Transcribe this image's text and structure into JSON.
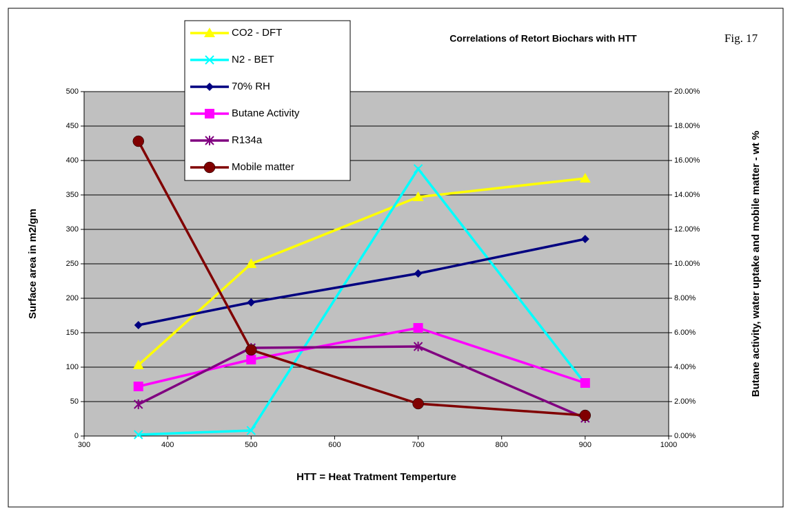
{
  "chart_data": {
    "type": "line",
    "title": "Correlations of Retort Biochars with HTT",
    "figure_label": "Fig. 17",
    "x_label": "HTT = Heat Tratment Temperture",
    "y_label": "Surface area in m2/gm",
    "y2_label": "Butane activity, water uptake and mobile matter - wt %",
    "x": [
      365,
      500,
      700,
      900
    ],
    "xlim": [
      300,
      1000
    ],
    "xticks": [
      300,
      400,
      500,
      600,
      700,
      800,
      900,
      1000
    ],
    "ylim": [
      0,
      500
    ],
    "yticks": [
      0,
      50,
      100,
      150,
      200,
      250,
      300,
      350,
      400,
      450,
      500
    ],
    "y2lim": [
      0,
      20
    ],
    "y2ticks": [
      {
        "value": 0,
        "label": "0.00%"
      },
      {
        "value": 2,
        "label": "2.00%"
      },
      {
        "value": 4,
        "label": "4.00%"
      },
      {
        "value": 6,
        "label": "6.00%"
      },
      {
        "value": 8,
        "label": "8.00%"
      },
      {
        "value": 10,
        "label": "10.00%"
      },
      {
        "value": 12,
        "label": "12.00%"
      },
      {
        "value": 14,
        "label": "14.00%"
      },
      {
        "value": 16,
        "label": "16.00%"
      },
      {
        "value": 18,
        "label": "18.00%"
      },
      {
        "value": 20,
        "label": "20.00%"
      }
    ],
    "grid": true,
    "series": [
      {
        "name": "CO2 - DFT",
        "color": "#ffff00",
        "marker": "triangle",
        "values": [
          103,
          250,
          347,
          374
        ]
      },
      {
        "name": "N2 - BET",
        "color": "#00ffff",
        "marker": "x",
        "values": [
          2,
          8,
          388,
          76
        ]
      },
      {
        "name": "70% RH",
        "color": "#000080",
        "marker": "diamond",
        "axis": "y2",
        "values": [
          6.44,
          7.76,
          9.44,
          11.44
        ]
      },
      {
        "name": "Butane Activity",
        "color": "#ff00ff",
        "marker": "square",
        "axis": "y2",
        "values": [
          2.88,
          4.44,
          6.28,
          3.08
        ]
      },
      {
        "name": "R134a",
        "color": "#800080",
        "marker": "star",
        "axis": "y2",
        "values": [
          1.84,
          5.12,
          5.2,
          1.04
        ]
      },
      {
        "name": "Mobile matter",
        "color": "#800000",
        "marker": "circle",
        "axis": "y2",
        "values": [
          17.12,
          5.0,
          1.88,
          1.2
        ]
      }
    ]
  }
}
